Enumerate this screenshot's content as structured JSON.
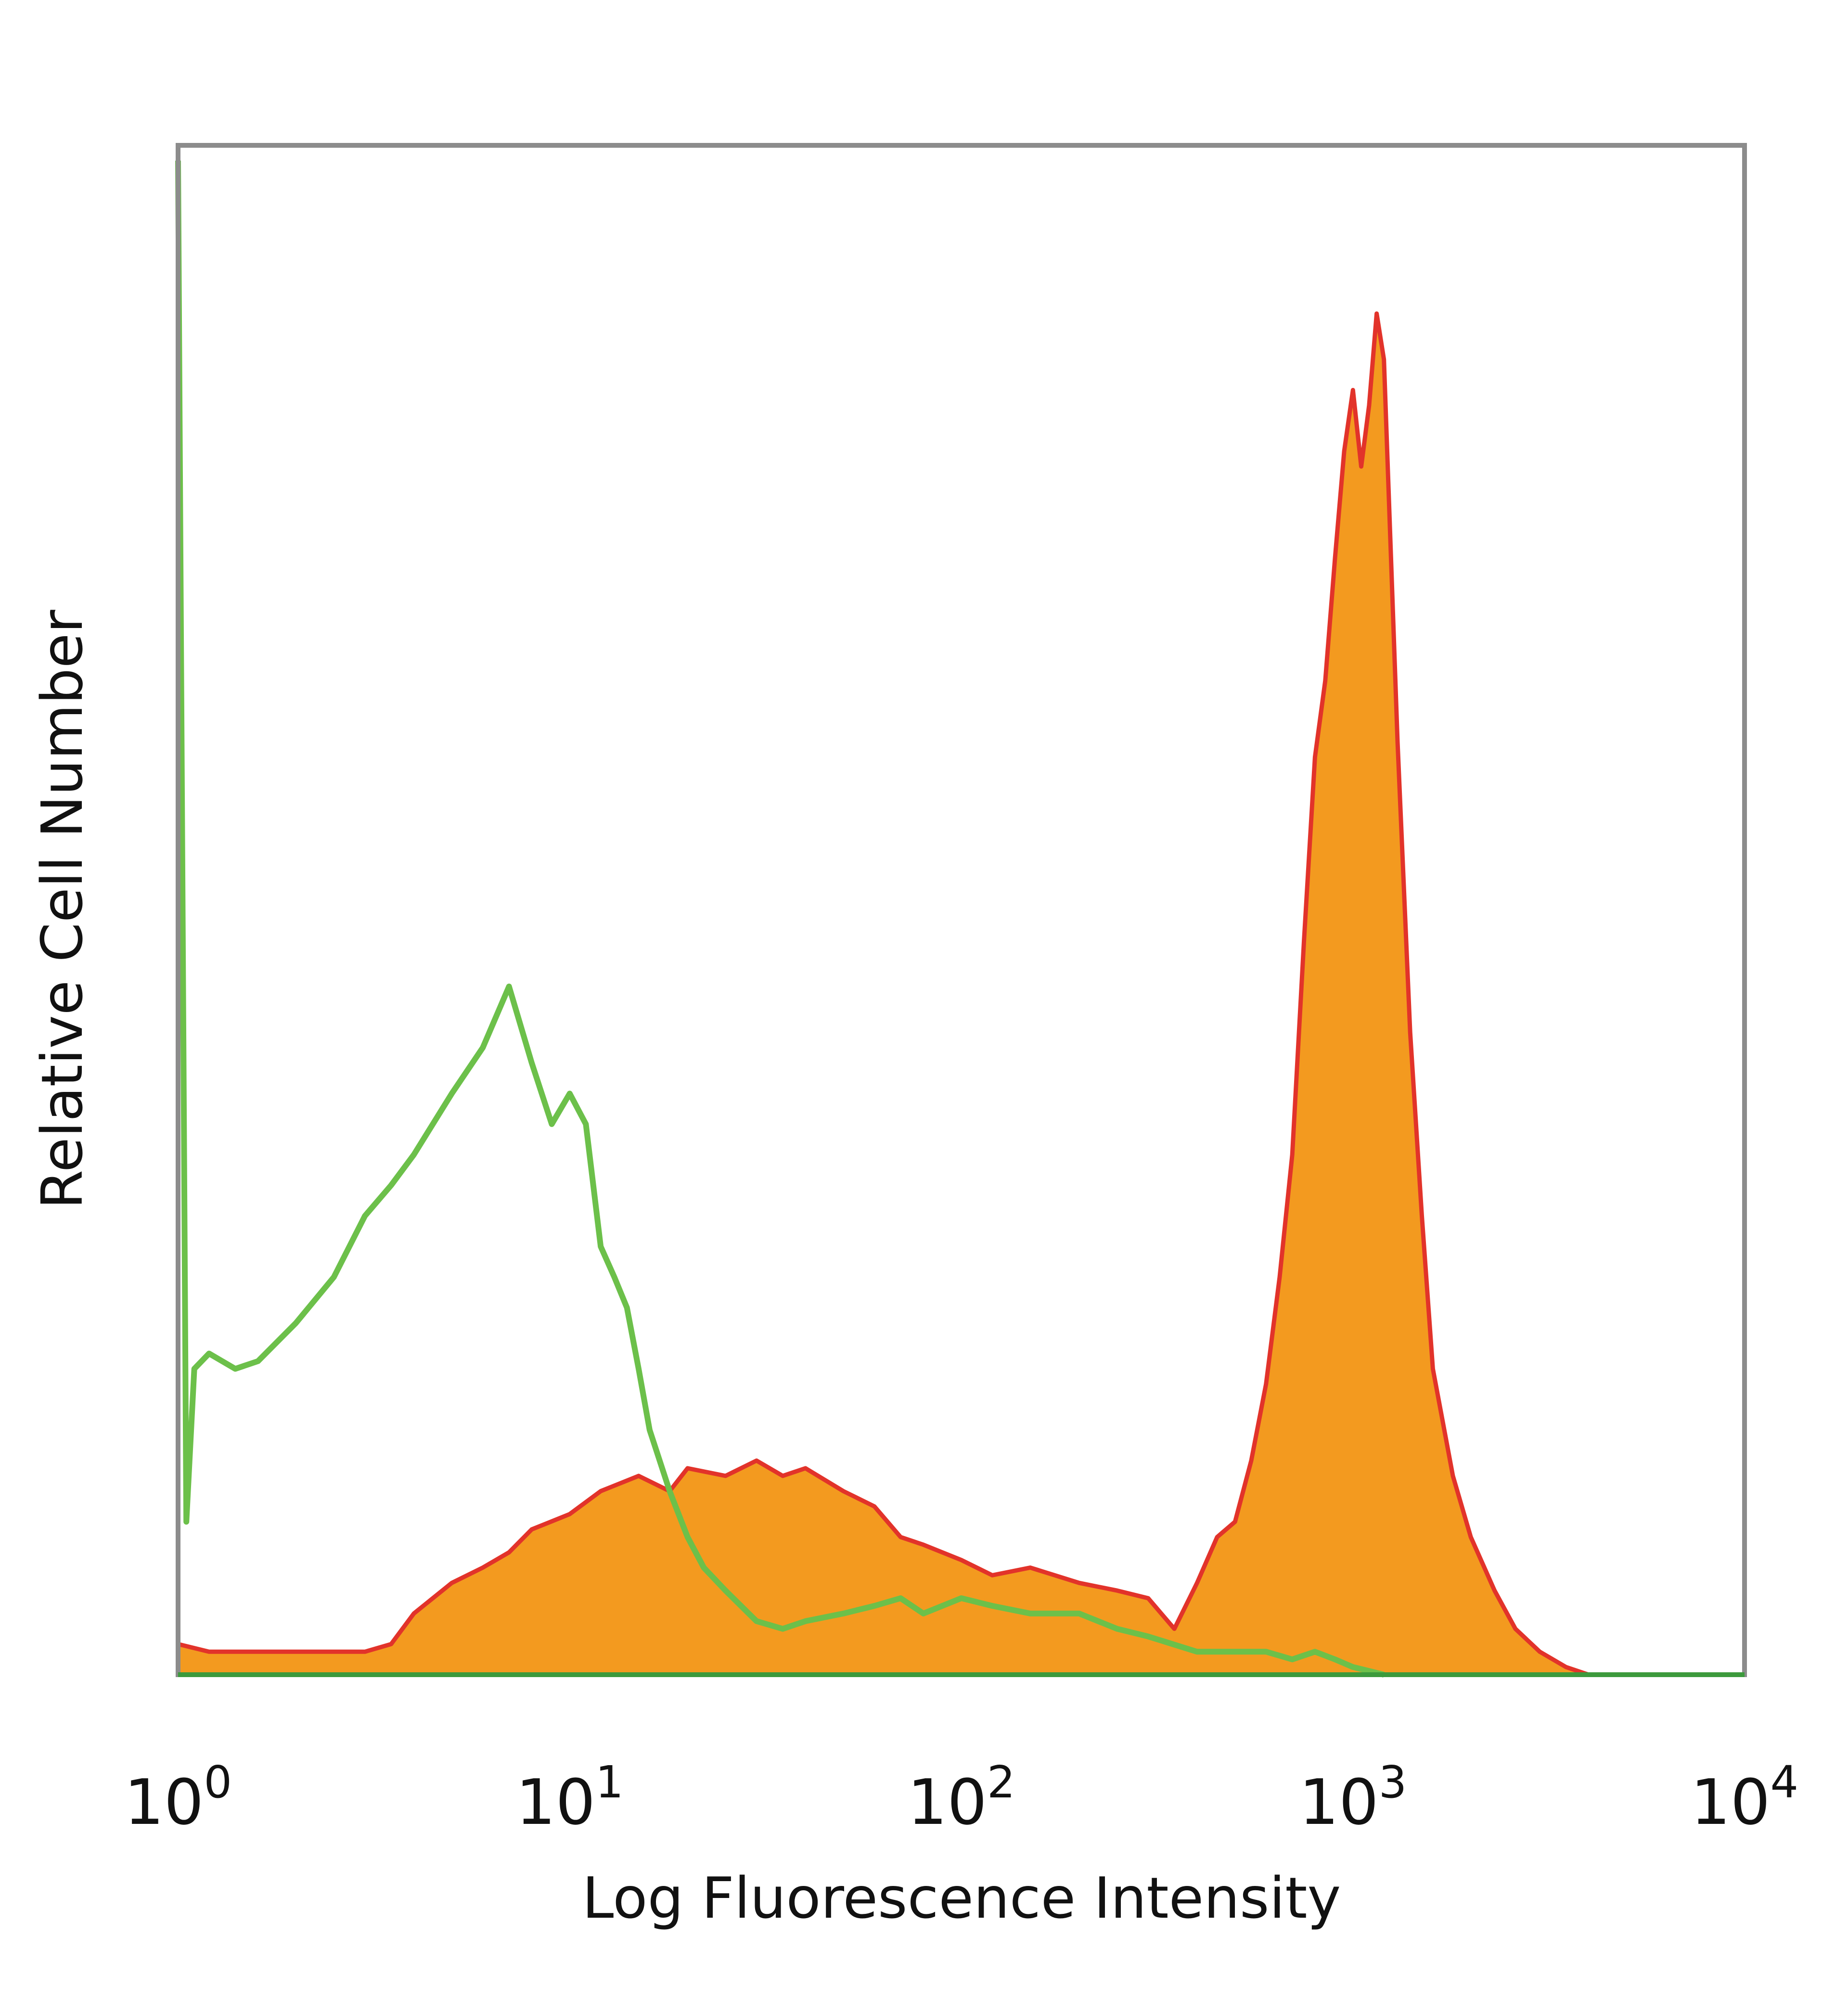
{
  "chart_data": {
    "type": "area",
    "xlabel": "Log Fluorescence Intensity",
    "ylabel": "Relative Cell Number",
    "xscale": "log",
    "xlim": [
      1,
      10000
    ],
    "ylim": [
      0,
      100
    ],
    "x_ticks": [
      {
        "base": "10",
        "exp": "0"
      },
      {
        "base": "10",
        "exp": "1"
      },
      {
        "base": "10",
        "exp": "2"
      },
      {
        "base": "10",
        "exp": "3"
      },
      {
        "base": "10",
        "exp": "4"
      }
    ],
    "grid": false,
    "legend": "none",
    "series": [
      {
        "color": "#f39a1f",
        "edge_color": "#e2332a",
        "filled": true,
        "x": [
          1.0,
          1.2,
          1.5,
          2.0,
          2.5,
          3.0,
          3.5,
          4.0,
          5.0,
          6.0,
          7.0,
          8.0,
          10.0,
          12.0,
          15.0,
          18.0,
          20.0,
          25.0,
          30.0,
          35.0,
          40.0,
          50.0,
          60.0,
          70.0,
          80.0,
          100.0,
          120.0,
          150.0,
          200.0,
          250.0,
          300.0,
          350.0,
          400.0,
          450.0,
          500.0,
          550.0,
          600.0,
          650.0,
          700.0,
          750.0,
          800.0,
          850.0,
          900.0,
          950.0,
          1000.0,
          1050.0,
          1100.0,
          1150.0,
          1200.0,
          1300.0,
          1400.0,
          1500.0,
          1600.0,
          1800.0,
          2000.0,
          2300.0,
          2600.0,
          3000.0,
          3500.0,
          4000.0
        ],
        "values": [
          2.0,
          1.5,
          1.5,
          1.5,
          1.5,
          1.5,
          2.0,
          4.0,
          6.0,
          7.0,
          8.0,
          9.5,
          10.5,
          12.0,
          13.0,
          12.0,
          13.5,
          13.0,
          14.0,
          13.0,
          13.5,
          12.0,
          11.0,
          9.0,
          8.5,
          7.5,
          6.5,
          7.0,
          6.0,
          5.5,
          5.0,
          3.0,
          6.0,
          9.0,
          10.0,
          14.0,
          19.0,
          26.0,
          34.0,
          48.0,
          60.0,
          65.0,
          73.0,
          80.0,
          84.0,
          79.0,
          83.0,
          89.0,
          86.0,
          61.0,
          42.0,
          30.0,
          20.0,
          13.0,
          9.0,
          5.5,
          3.0,
          1.5,
          0.5,
          0.0
        ]
      },
      {
        "color": "#6cc04a",
        "filled": false,
        "x": [
          1.0,
          1.05,
          1.1,
          1.2,
          1.4,
          1.6,
          2.0,
          2.5,
          3.0,
          3.5,
          4.0,
          5.0,
          6.0,
          7.0,
          8.0,
          9.0,
          10.0,
          11.0,
          12.0,
          13.0,
          14.0,
          15.0,
          16.0,
          18.0,
          20.0,
          22.0,
          25.0,
          30.0,
          35.0,
          40.0,
          50.0,
          60.0,
          70.0,
          80.0,
          100.0,
          120.0,
          150.0,
          200.0,
          250.0,
          300.0,
          400.0,
          500.0,
          600.0,
          700.0,
          800.0,
          900.0,
          1000.0,
          1200.0
        ],
        "values": [
          99.0,
          10.0,
          20.0,
          21.0,
          20.0,
          20.5,
          23.0,
          26.0,
          30.0,
          32.0,
          34.0,
          38.0,
          41.0,
          45.0,
          40.0,
          36.0,
          38.0,
          36.0,
          28.0,
          26.0,
          24.0,
          20.0,
          16.0,
          12.0,
          9.0,
          7.0,
          5.5,
          3.5,
          3.0,
          3.5,
          4.0,
          4.5,
          5.0,
          4.0,
          5.0,
          4.5,
          4.0,
          4.0,
          3.0,
          2.5,
          1.5,
          1.5,
          1.5,
          1.0,
          1.5,
          1.0,
          0.5,
          0.0
        ]
      }
    ]
  },
  "colors": {
    "frame": "#8c8c8c",
    "baseline": "#3c9a3c",
    "text": "#111111"
  }
}
